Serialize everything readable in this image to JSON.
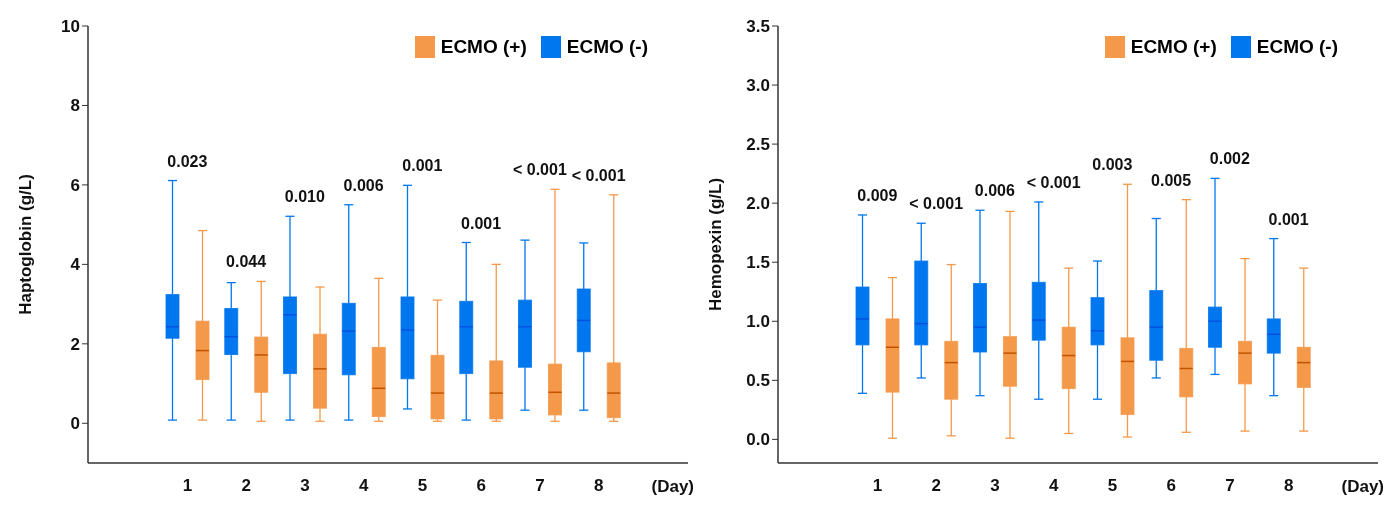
{
  "chart_data": [
    {
      "type": "box",
      "ylabel": "Haptoglobin (g/L)",
      "xlabel": "(Day)",
      "categories": [
        "1",
        "2",
        "3",
        "4",
        "5",
        "6",
        "7",
        "8"
      ],
      "ylim": [
        -1,
        10
      ],
      "yticks": [
        0,
        2,
        4,
        6,
        8,
        10
      ],
      "legend": "top right",
      "series": [
        {
          "name": "ECMO (+)",
          "color": "#f4984a",
          "boxes": [
            {
              "low": 0.08,
              "q1": 1.1,
              "median": 1.83,
              "q3": 2.57,
              "high": 4.85
            },
            {
              "low": 0.05,
              "q1": 0.78,
              "median": 1.72,
              "q3": 2.17,
              "high": 3.57
            },
            {
              "low": 0.05,
              "q1": 0.38,
              "median": 1.37,
              "q3": 2.24,
              "high": 3.43
            },
            {
              "low": 0.05,
              "q1": 0.17,
              "median": 0.88,
              "q3": 1.91,
              "high": 3.65
            },
            {
              "low": 0.05,
              "q1": 0.11,
              "median": 0.76,
              "q3": 1.71,
              "high": 3.1
            },
            {
              "low": 0.05,
              "q1": 0.11,
              "median": 0.76,
              "q3": 1.57,
              "high": 4.0
            },
            {
              "low": 0.05,
              "q1": 0.21,
              "median": 0.78,
              "q3": 1.49,
              "high": 5.89
            },
            {
              "low": 0.05,
              "q1": 0.14,
              "median": 0.76,
              "q3": 1.52,
              "high": 5.75
            }
          ]
        },
        {
          "name": "ECMO (-)",
          "color": "#0077ee",
          "boxes": [
            {
              "low": 0.08,
              "q1": 2.14,
              "median": 2.43,
              "q3": 3.24,
              "high": 6.11
            },
            {
              "low": 0.08,
              "q1": 1.73,
              "median": 2.18,
              "q3": 2.89,
              "high": 3.54
            },
            {
              "low": 0.08,
              "q1": 1.25,
              "median": 2.73,
              "q3": 3.18,
              "high": 5.21
            },
            {
              "low": 0.08,
              "q1": 1.22,
              "median": 2.32,
              "q3": 3.02,
              "high": 5.5
            },
            {
              "low": 0.36,
              "q1": 1.12,
              "median": 2.35,
              "q3": 3.18,
              "high": 5.99
            },
            {
              "low": 0.08,
              "q1": 1.25,
              "median": 2.43,
              "q3": 3.07,
              "high": 4.55
            },
            {
              "low": 0.33,
              "q1": 1.41,
              "median": 2.43,
              "q3": 3.1,
              "high": 4.61
            },
            {
              "low": 0.33,
              "q1": 1.8,
              "median": 2.59,
              "q3": 3.38,
              "high": 4.54
            }
          ]
        }
      ],
      "annotations": [
        "0.023",
        "0.044",
        "0.010",
        "0.006",
        "0.001",
        "0.001",
        "< 0.001",
        "< 0.001"
      ]
    },
    {
      "type": "box",
      "ylabel": "Hemopexin (g/L)",
      "xlabel": "(Day)",
      "categories": [
        "1",
        "2",
        "3",
        "4",
        "5",
        "6",
        "7",
        "8"
      ],
      "ylim": [
        -0.2,
        3.5
      ],
      "yticks": [
        {
          "value": 0,
          "label": "0.0"
        },
        0.5,
        {
          "value": 1,
          "label": "1.0"
        },
        1.5,
        {
          "value": 2,
          "label": "2.0"
        },
        2.5,
        {
          "value": 3,
          "label": "3.0"
        },
        3.5
      ],
      "legend": "top right",
      "series": [
        {
          "name": "ECMO (+)",
          "color": "#f4984a",
          "boxes": [
            {
              "low": 0.01,
              "q1": 0.4,
              "median": 0.78,
              "q3": 1.02,
              "high": 1.37
            },
            {
              "low": 0.03,
              "q1": 0.34,
              "median": 0.65,
              "q3": 0.83,
              "high": 1.48
            },
            {
              "low": 0.01,
              "q1": 0.45,
              "median": 0.73,
              "q3": 0.87,
              "high": 1.93
            },
            {
              "low": 0.05,
              "q1": 0.43,
              "median": 0.71,
              "q3": 0.95,
              "high": 1.45
            },
            {
              "low": 0.02,
              "q1": 0.21,
              "median": 0.66,
              "q3": 0.86,
              "high": 2.16
            },
            {
              "low": 0.06,
              "q1": 0.36,
              "median": 0.6,
              "q3": 0.77,
              "high": 2.03
            },
            {
              "low": 0.07,
              "q1": 0.47,
              "median": 0.73,
              "q3": 0.83,
              "high": 1.53
            },
            {
              "low": 0.07,
              "q1": 0.44,
              "median": 0.65,
              "q3": 0.78,
              "high": 1.45
            }
          ]
        },
        {
          "name": "ECMO (-)",
          "color": "#0077ee",
          "boxes": [
            {
              "low": 0.39,
              "q1": 0.8,
              "median": 1.02,
              "q3": 1.29,
              "high": 1.9
            },
            {
              "low": 0.52,
              "q1": 0.8,
              "median": 0.98,
              "q3": 1.51,
              "high": 1.83
            },
            {
              "low": 0.37,
              "q1": 0.74,
              "median": 0.95,
              "q3": 1.32,
              "high": 1.94
            },
            {
              "low": 0.34,
              "q1": 0.84,
              "median": 1.01,
              "q3": 1.33,
              "high": 2.01
            },
            {
              "low": 0.34,
              "q1": 0.8,
              "median": 0.92,
              "q3": 1.2,
              "high": 1.51
            },
            {
              "low": 0.52,
              "q1": 0.67,
              "median": 0.95,
              "q3": 1.26,
              "high": 1.87
            },
            {
              "low": 0.55,
              "q1": 0.78,
              "median": 1.0,
              "q3": 1.12,
              "high": 2.21
            },
            {
              "low": 0.37,
              "q1": 0.73,
              "median": 0.89,
              "q3": 1.02,
              "high": 1.7
            }
          ]
        }
      ],
      "annotations": [
        "0.009",
        "< 0.001",
        "0.006",
        "< 0.001",
        "0.003",
        "0.005",
        "0.002",
        "0.001"
      ]
    }
  ]
}
